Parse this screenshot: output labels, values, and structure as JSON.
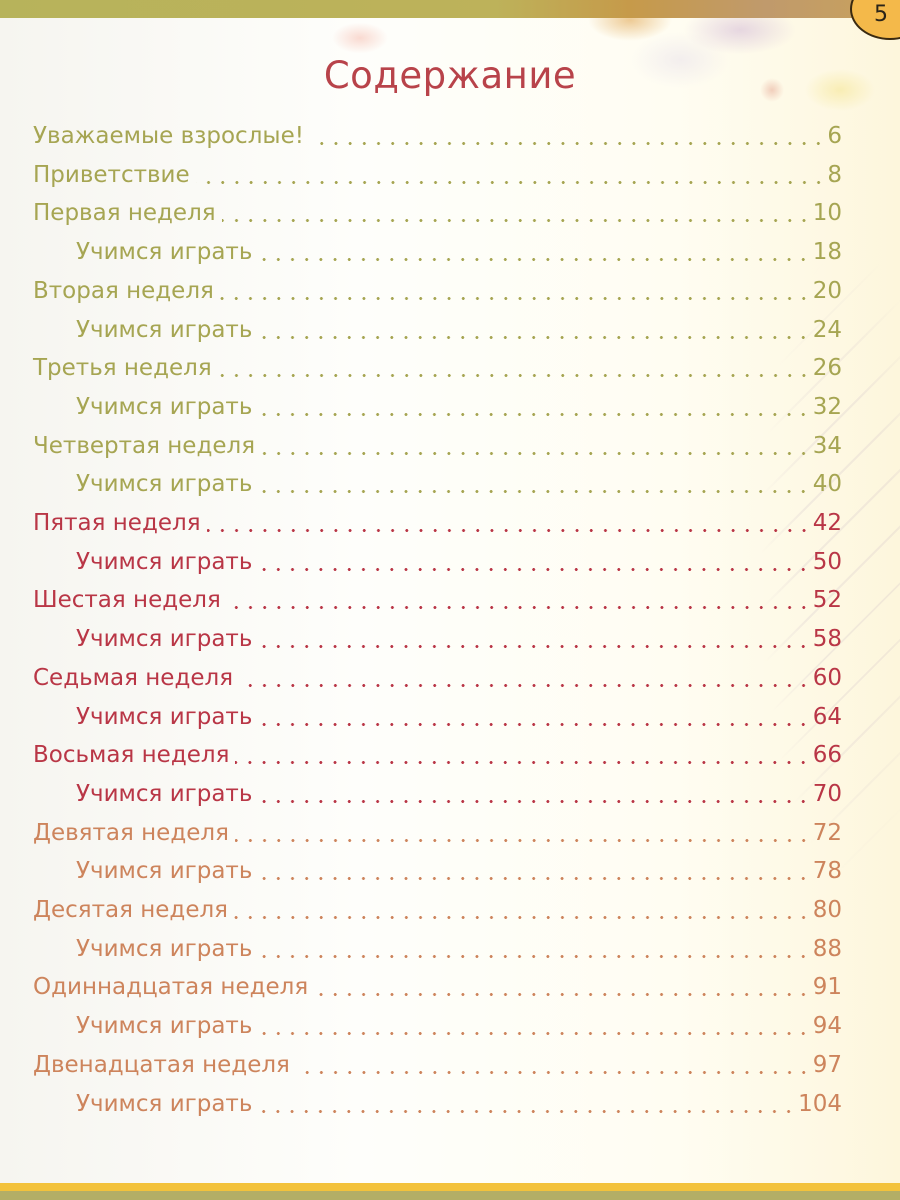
{
  "page": {
    "number": "5",
    "title": "Содержание"
  },
  "colors": {
    "olive": "#a6a552",
    "red": "#b93646",
    "orange": "#cd845c",
    "title": "#b8434a"
  },
  "toc": [
    {
      "label": "Уважаемые взрослые!",
      "page": "6",
      "level": 1,
      "color": "olive"
    },
    {
      "label": "Приветствие",
      "page": "8",
      "level": 1,
      "color": "olive"
    },
    {
      "label": "Первая неделя",
      "page": "10",
      "level": 1,
      "color": "olive"
    },
    {
      "label": "Учимся играть",
      "page": "18",
      "level": 2,
      "color": "olive"
    },
    {
      "label": "Вторая неделя",
      "page": "20",
      "level": 1,
      "color": "olive"
    },
    {
      "label": "Учимся играть",
      "page": "24",
      "level": 2,
      "color": "olive"
    },
    {
      "label": "Третья неделя",
      "page": "26",
      "level": 1,
      "color": "olive"
    },
    {
      "label": "Учимся играть",
      "page": "32",
      "level": 2,
      "color": "olive"
    },
    {
      "label": "Четвертая неделя",
      "page": "34",
      "level": 1,
      "color": "olive"
    },
    {
      "label": "Учимся играть",
      "page": "40",
      "level": 2,
      "color": "olive"
    },
    {
      "label": "Пятая неделя",
      "page": "42",
      "level": 1,
      "color": "red"
    },
    {
      "label": "Учимся играть",
      "page": "50",
      "level": 2,
      "color": "red"
    },
    {
      "label": "Шестая неделя",
      "page": "52",
      "level": 1,
      "color": "red"
    },
    {
      "label": "Учимся играть",
      "page": "58",
      "level": 2,
      "color": "red"
    },
    {
      "label": "Седьмая неделя",
      "page": "60",
      "level": 1,
      "color": "red"
    },
    {
      "label": "Учимся играть",
      "page": "64",
      "level": 2,
      "color": "red"
    },
    {
      "label": "Восьмая неделя",
      "page": "66",
      "level": 1,
      "color": "red"
    },
    {
      "label": "Учимся играть",
      "page": "70",
      "level": 2,
      "color": "red"
    },
    {
      "label": "Девятая неделя",
      "page": "72",
      "level": 1,
      "color": "orange"
    },
    {
      "label": "Учимся играть",
      "page": "78",
      "level": 2,
      "color": "orange"
    },
    {
      "label": "Десятая неделя",
      "page": "80",
      "level": 1,
      "color": "orange"
    },
    {
      "label": "Учимся играть",
      "page": "88",
      "level": 2,
      "color": "orange"
    },
    {
      "label": "Одиннадцатая неделя",
      "page": "91",
      "level": 1,
      "color": "orange"
    },
    {
      "label": "Учимся играть",
      "page": "94",
      "level": 2,
      "color": "orange"
    },
    {
      "label": "Двенадцатая неделя",
      "page": "97",
      "level": 1,
      "color": "orange"
    },
    {
      "label": "Учимся играть",
      "page": "104",
      "level": 2,
      "color": "orange"
    }
  ]
}
